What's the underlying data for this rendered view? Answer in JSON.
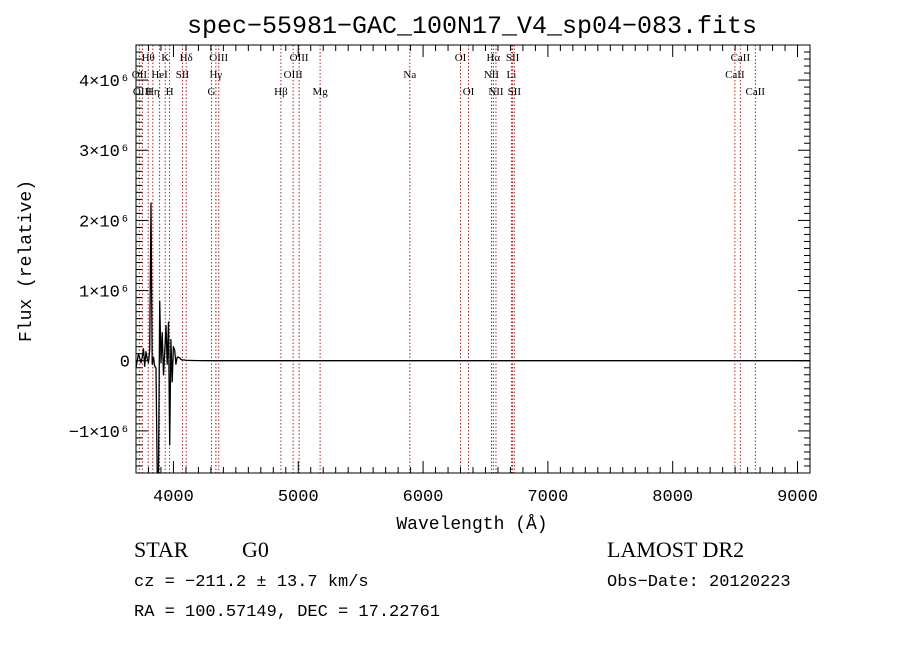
{
  "chart_data": {
    "type": "line",
    "title": "spec−55981−GAC_100N17_V4_sp04−083.fits",
    "xlabel": "Wavelength (Å)",
    "ylabel": "Flux (relative)",
    "xlim": [
      3700,
      9100
    ],
    "ylim": [
      -1600000,
      4500000
    ],
    "x_ticks": [
      4000,
      5000,
      6000,
      7000,
      8000,
      9000
    ],
    "x_tick_labels": [
      "4000",
      "5000",
      "6000",
      "7000",
      "8000",
      "9000"
    ],
    "y_ticks": [
      -1000000,
      0,
      1000000,
      2000000,
      3000000,
      4000000
    ],
    "y_tick_labels": [
      "−1×10⁶",
      "0",
      "1×10⁶",
      "2×10⁶",
      "3×10⁶",
      "4×10⁶"
    ],
    "grid": false,
    "series": [
      {
        "color": "#000000",
        "x": [
          3700,
          3720,
          3740,
          3750,
          3760,
          3770,
          3780,
          3790,
          3800,
          3810,
          3820,
          3830,
          3840,
          3850,
          3860,
          3870,
          3880,
          3890,
          3900,
          3910,
          3920,
          3930,
          3940,
          3950,
          3960,
          3970,
          3980,
          3990,
          4000,
          4010,
          4020,
          4030,
          4040,
          4050,
          4060,
          4070,
          4080,
          4090,
          4100,
          4120,
          4150,
          4200,
          4300,
          4500,
          5000,
          6000,
          7000,
          8000,
          9100
        ],
        "y": [
          -100000,
          100000,
          -30000,
          50000,
          170000,
          -80000,
          130000,
          30000,
          -30000,
          150000,
          2250000,
          -50000,
          50000,
          -80000,
          -100000,
          -1600000,
          -1600000,
          850000,
          -30000,
          400000,
          -200000,
          120000,
          500000,
          -50000,
          550000,
          -1200000,
          300000,
          -300000,
          200000,
          150000,
          -50000,
          50000,
          50000,
          40000,
          20000,
          10000,
          10000,
          10000,
          5000,
          5000,
          3000,
          2000,
          0,
          0,
          0,
          0,
          0,
          0,
          0
        ]
      }
    ],
    "line_markers": [
      {
        "label": "Hθ",
        "x": 3798,
        "row": 1
      },
      {
        "label": "OII",
        "x": 3727,
        "row": 2
      },
      {
        "label": "OIII",
        "x": 3751,
        "row": 3
      },
      {
        "label": "Hη",
        "x": 3835,
        "row": 3
      },
      {
        "label": "HeI",
        "x": 3889,
        "row": 2
      },
      {
        "label": "K",
        "x": 3934,
        "row": 1
      },
      {
        "label": "H",
        "x": 3969,
        "row": 3
      },
      {
        "label": "Hδ",
        "x": 4102,
        "row": 1
      },
      {
        "label": "SII",
        "x": 4072,
        "row": 2
      },
      {
        "label": "OIII",
        "x": 4363,
        "row": 1
      },
      {
        "label": "Hγ",
        "x": 4340,
        "row": 2
      },
      {
        "label": "G",
        "x": 4305,
        "row": 3
      },
      {
        "label": "Hβ",
        "x": 4861,
        "row": 3
      },
      {
        "label": "OIII",
        "x": 5007,
        "row": 1
      },
      {
        "label": "OIII",
        "x": 4959,
        "row": 2
      },
      {
        "label": "Mg",
        "x": 5175,
        "row": 3
      },
      {
        "label": "Na",
        "x": 5894,
        "row": 2
      },
      {
        "label": "OI",
        "x": 6300,
        "row": 1
      },
      {
        "label": "OI",
        "x": 6364,
        "row": 3
      },
      {
        "label": "Hα",
        "x": 6563,
        "row": 1
      },
      {
        "label": "NII",
        "x": 6548,
        "row": 2
      },
      {
        "label": "NII",
        "x": 6584,
        "row": 3
      },
      {
        "label": "SII",
        "x": 6717,
        "row": 1
      },
      {
        "label": "Li",
        "x": 6708,
        "row": 2
      },
      {
        "label": "SII",
        "x": 6731,
        "row": 3
      },
      {
        "label": "CaII",
        "x": 8542,
        "row": 1
      },
      {
        "label": "CaII",
        "x": 8498,
        "row": 2
      },
      {
        "label": "CaII",
        "x": 8662,
        "row": 3
      }
    ],
    "marker_color": "#b22222"
  },
  "info": {
    "object_class": "STAR",
    "subclass": "G0",
    "survey": "LAMOST DR2",
    "cz": "cz = −211.2 ± 13.7 km/s",
    "obs_date": "Obs−Date: 20120223",
    "radec": "RA = 100.57149, DEC =  17.22761"
  }
}
